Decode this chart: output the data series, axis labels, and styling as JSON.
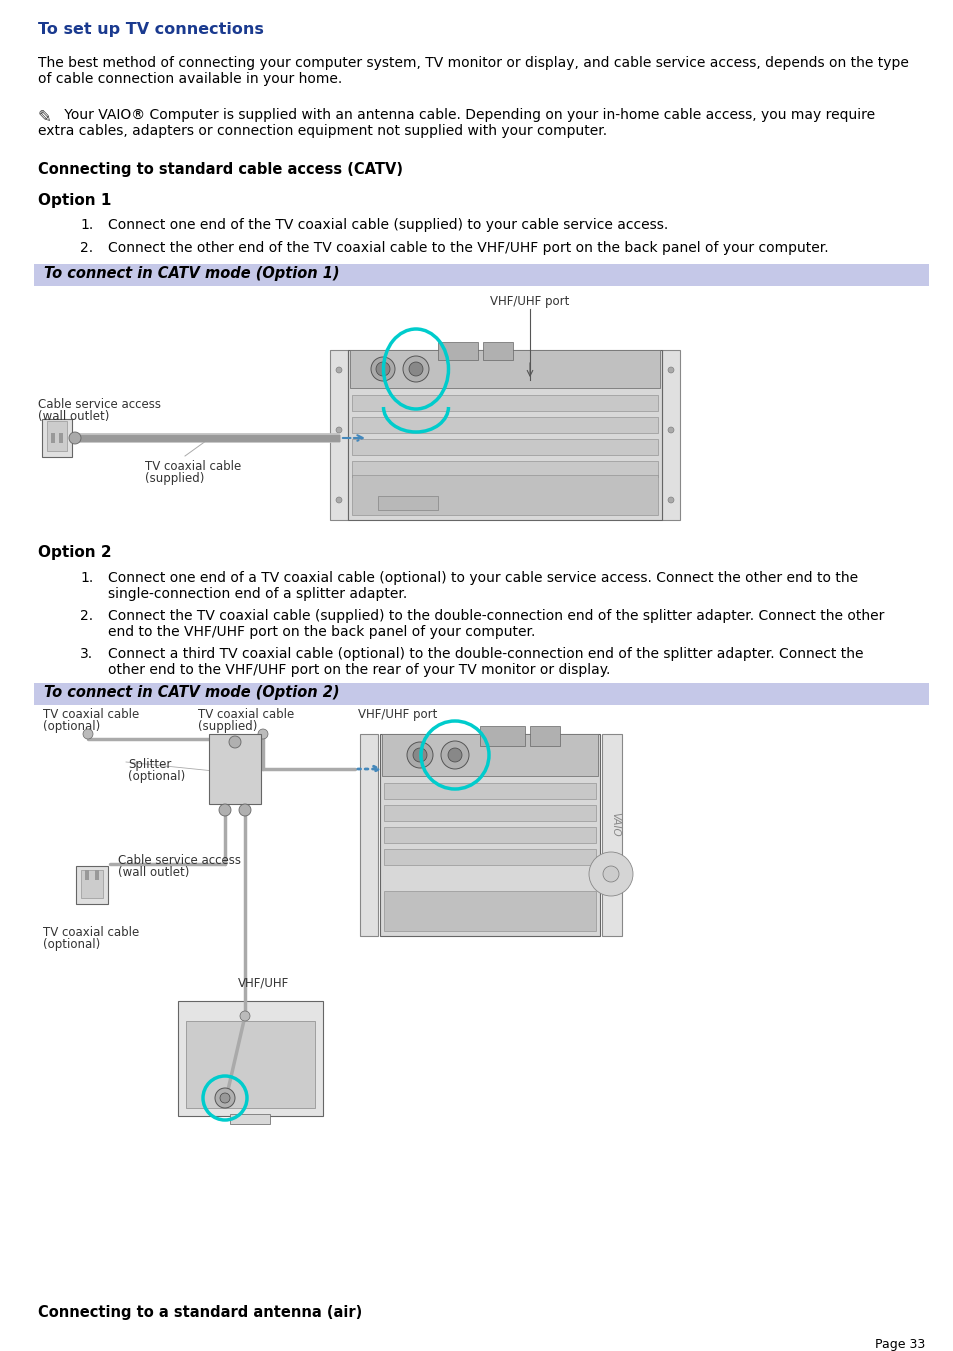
{
  "title": "To set up TV connections",
  "title_color": "#1a3a8f",
  "bg_color": "#ffffff",
  "page_number": "Page 33",
  "para1_line1": "The best method of connecting your computer system, TV monitor or display, and cable service access, depends on the type",
  "para1_line2": "of cable connection available in your home.",
  "note_line1": " Your VAIO® Computer is supplied with an antenna cable. Depending on your in-home cable access, you may require",
  "note_line2": "extra cables, adapters or connection equipment not supplied with your computer.",
  "section1_title": "Connecting to standard cable access (CATV)",
  "option1_title": "Option 1",
  "opt1_item1": "Connect one end of the TV coaxial cable (supplied) to your cable service access.",
  "opt1_item2": "Connect the other end of the TV coaxial cable to the VHF/UHF port on the back panel of your computer.",
  "banner1_text": "To connect in CATV mode (Option 1)",
  "banner_color": "#c5c8e8",
  "option2_title": "Option 2",
  "opt2_item1a": "Connect one end of a TV coaxial cable (optional) to your cable service access. Connect the other end to the",
  "opt2_item1b": "single-connection end of a splitter adapter.",
  "opt2_item2a": "Connect the TV coaxial cable (supplied) to the double-connection end of the splitter adapter. Connect the other",
  "opt2_item2b": "end to the VHF/UHF port on the back panel of your computer.",
  "opt2_item3a": "Connect a third TV coaxial cable (optional) to the double-connection end of the splitter adapter. Connect the",
  "opt2_item3b": "other end to the VHF/UHF port on the rear of your TV monitor or display.",
  "banner2_text": "To connect in CATV mode (Option 2)",
  "section2_title": "Connecting to a standard antenna (air)",
  "diag1_label_vhf": "VHF/UHF port",
  "diag1_label_cable_svc": "Cable service access",
  "diag1_label_wall": "(wall outlet)",
  "diag1_label_tv_cable": "TV coaxial cable",
  "diag1_label_supplied": "(supplied)",
  "diag2_label_opt_top": "TV coaxial cable",
  "diag2_label_opt_top2": "(optional)",
  "diag2_label_sup_top": "TV coaxial cable",
  "diag2_label_sup_top2": "(supplied)",
  "diag2_label_vhf_port": "VHF/UHF port",
  "diag2_label_splitter": "Splitter",
  "diag2_label_splitter2": "(optional)",
  "diag2_label_cable_svc": "Cable service access",
  "diag2_label_wall": "(wall outlet)",
  "diag2_label_opt_bot": "TV coaxial cable",
  "diag2_label_opt_bot2": "(optional)",
  "diag2_label_vhf": "VHF/UHF",
  "cyan_color": "#00cccc",
  "body_fs": 10,
  "title_fs": 11.5,
  "section_fs": 10.5,
  "option_fs": 11,
  "banner_fs": 10.5,
  "label_fs": 8.5,
  "page_fs": 9
}
